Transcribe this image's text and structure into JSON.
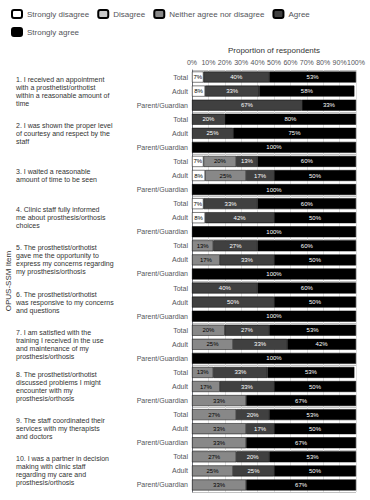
{
  "chart_data": {
    "type": "bar",
    "orientation": "horizontal",
    "stacked": true,
    "x_label": "Proportion of respondents",
    "y_label": "OPUS-SSM Item",
    "categories": [
      "1. I received an appointment\nwith a prosthetist/orthotist\nwithin a reasonable amount of\ntime",
      "2. I was shown the proper level\nof courtesy and respect by the\nstaff",
      "3. I waited a reasonable\namount of time to be seen",
      "4. Clinic staff fully informed\nme about prosthesis/orthosis\nchoices",
      "5. The prosthetist/orthotist\ngave me the opportunity to\nexpress my concerns regarding\nmy prosthesis/orthosis",
      "6. The prosthetist/orthotist\nwas responsive to my concerns\nand questions",
      "7. I am satisfied with the\ntraining I received in the use\nand maintenance of my\nprosthesis/orthosis",
      "8. The prosthetist/orthotist\ndiscussed problems I might\nencounter with my\nprosthesis/orthosis",
      "9. The staff coordinated their\nservices with my therapists\nand doctors",
      "10. I was a partner in decision\nmaking with clinic staff\nregarding my care and\nprosthesis/orthosis"
    ],
    "subgroups": [
      "Total",
      "Adult",
      "Parent/Guardian"
    ],
    "series": [
      {
        "name": "Strongly disagree",
        "color": "#ffffff",
        "values": [
          [
            7,
            8,
            0
          ],
          [
            0,
            0,
            0
          ],
          [
            7,
            8,
            0
          ],
          [
            7,
            8,
            0
          ],
          [
            0,
            0,
            0
          ],
          [
            0,
            0,
            0
          ],
          [
            0,
            0,
            0
          ],
          [
            0,
            0,
            0
          ],
          [
            0,
            0,
            0
          ],
          [
            0,
            0,
            0
          ]
        ],
        "value_labels": [
          [
            "7%",
            "8%",
            null
          ],
          [
            null,
            null,
            null
          ],
          [
            "7%",
            "8%",
            null
          ],
          [
            "7%",
            "8%",
            null
          ],
          [
            null,
            null,
            null
          ],
          [
            null,
            null,
            null
          ],
          [
            null,
            null,
            null
          ],
          [
            null,
            null,
            null
          ],
          [
            null,
            null,
            null
          ],
          [
            null,
            null,
            null
          ]
        ]
      },
      {
        "name": "Disagree",
        "color": "#c8c8c8",
        "values": [
          [
            0,
            0,
            0
          ],
          [
            0,
            0,
            0
          ],
          [
            0,
            0,
            0
          ],
          [
            0,
            0,
            0
          ],
          [
            0,
            0,
            0
          ],
          [
            0,
            0,
            0
          ],
          [
            0,
            0,
            0
          ],
          [
            0,
            0,
            0
          ],
          [
            0,
            0,
            0
          ],
          [
            0,
            0,
            0
          ]
        ],
        "value_labels": [
          [
            null,
            null,
            null
          ],
          [
            null,
            null,
            null
          ],
          [
            null,
            null,
            null
          ],
          [
            null,
            null,
            null
          ],
          [
            null,
            null,
            null
          ],
          [
            null,
            null,
            null
          ],
          [
            null,
            null,
            null
          ],
          [
            null,
            null,
            null
          ],
          [
            null,
            null,
            null
          ],
          [
            null,
            null,
            null
          ]
        ]
      },
      {
        "name": "Neither agree nor disagree",
        "color": "#888888",
        "values": [
          [
            0,
            0,
            0
          ],
          [
            0,
            0,
            0
          ],
          [
            20,
            25,
            0
          ],
          [
            0,
            0,
            0
          ],
          [
            13,
            17,
            0
          ],
          [
            0,
            0,
            0
          ],
          [
            20,
            25,
            0
          ],
          [
            13,
            17,
            33
          ],
          [
            27,
            33,
            33
          ],
          [
            27,
            25,
            33
          ]
        ],
        "value_labels": [
          [
            null,
            null,
            null
          ],
          [
            null,
            null,
            null
          ],
          [
            "20%",
            "25%",
            null
          ],
          [
            null,
            null,
            null
          ],
          [
            "13%",
            "17%",
            null
          ],
          [
            null,
            null,
            null
          ],
          [
            "20%",
            "25%",
            null
          ],
          [
            "13%",
            "17%",
            "33%"
          ],
          [
            "27%",
            "33%",
            "33%"
          ],
          [
            "27%",
            "25%",
            "33%"
          ]
        ]
      },
      {
        "name": "Agree",
        "color": "#404040",
        "values": [
          [
            40,
            33,
            67
          ],
          [
            20,
            25,
            0
          ],
          [
            13,
            17,
            0
          ],
          [
            33,
            42,
            0
          ],
          [
            27,
            33,
            0
          ],
          [
            40,
            50,
            0
          ],
          [
            27,
            33,
            0
          ],
          [
            33,
            33,
            0
          ],
          [
            20,
            17,
            0
          ],
          [
            20,
            25,
            0
          ]
        ],
        "value_labels": [
          [
            "40%",
            "33%",
            "67%"
          ],
          [
            "20%",
            "25%",
            null
          ],
          [
            "13%",
            "17%",
            null
          ],
          [
            "33%",
            "42%",
            null
          ],
          [
            "27%",
            "33%",
            null
          ],
          [
            "40%",
            "50%",
            null
          ],
          [
            "27%",
            "33%",
            null
          ],
          [
            "33%",
            "33%",
            null
          ],
          [
            "20%",
            "17%",
            null
          ],
          [
            "20%",
            "25%",
            null
          ]
        ]
      },
      {
        "name": "Strongly agree",
        "color": "#000000",
        "values": [
          [
            53,
            58,
            33
          ],
          [
            80,
            75,
            100
          ],
          [
            60,
            50,
            100
          ],
          [
            60,
            50,
            100
          ],
          [
            60,
            50,
            100
          ],
          [
            60,
            50,
            100
          ],
          [
            53,
            42,
            100
          ],
          [
            53,
            50,
            67
          ],
          [
            53,
            50,
            67
          ],
          [
            53,
            50,
            67
          ]
        ],
        "value_labels": [
          [
            "53%",
            "58%",
            "33%"
          ],
          [
            "80%",
            "75%",
            "100%"
          ],
          [
            "60%",
            "50%",
            "100%"
          ],
          [
            "60%",
            "50%",
            "100%"
          ],
          [
            "60%",
            "50%",
            "100%"
          ],
          [
            "60%",
            "50%",
            "100%"
          ],
          [
            "53%",
            "42%",
            "100%"
          ],
          [
            "53%",
            "50%",
            "67%"
          ],
          [
            "53%",
            "50%",
            "67%"
          ],
          [
            "53%",
            "50%",
            "67%"
          ]
        ]
      }
    ],
    "xlim": [
      0,
      100
    ],
    "xticks": [
      {
        "value": 0,
        "label": "0%"
      },
      {
        "value": 10,
        "label": "10%"
      },
      {
        "value": 20,
        "label": "20%"
      },
      {
        "value": 30,
        "label": "30%"
      },
      {
        "value": 40,
        "label": "40%"
      },
      {
        "value": 50,
        "label": "50%"
      },
      {
        "value": 60,
        "label": "60%"
      },
      {
        "value": 70,
        "label": "70%"
      },
      {
        "value": 80,
        "label": "80%"
      },
      {
        "value": 90,
        "label": "90%"
      },
      {
        "value": 100,
        "label": "100%"
      }
    ],
    "grid": true,
    "legend": "top",
    "data_labels": true
  }
}
